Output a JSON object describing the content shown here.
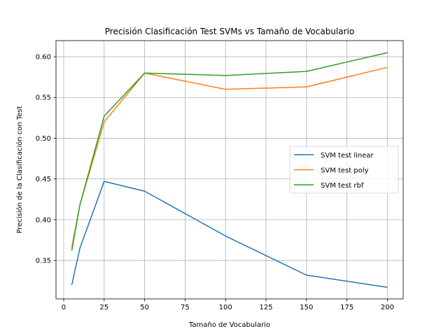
{
  "chart_data": {
    "type": "line",
    "title": "Precisión Clasificación Test SVMs vs Tamaño de Vocabulario",
    "xlabel": "Tamaño de Vocabulario",
    "ylabel": "Precisión de la Clasificación con Test",
    "xlim": [
      -4.75,
      209.75
    ],
    "ylim": [
      0.3028,
      0.6198
    ],
    "xticks": [
      0,
      25,
      50,
      75,
      100,
      125,
      150,
      175,
      200
    ],
    "yticks": [
      0.35,
      0.4,
      0.45,
      0.5,
      0.55,
      0.6
    ],
    "ytick_labels": [
      "0.35",
      "0.40",
      "0.45",
      "0.50",
      "0.55",
      "0.60"
    ],
    "grid": true,
    "legend_position": "center-right",
    "x": [
      5,
      10,
      25,
      50,
      100,
      150,
      200
    ],
    "series": [
      {
        "name": "SVM test linear",
        "color": "#1f77b4",
        "values": [
          0.32,
          0.365,
          0.447,
          0.435,
          0.38,
          0.332,
          0.317
        ]
      },
      {
        "name": "SVM test poly",
        "color": "#ff7f0e",
        "values": [
          0.366,
          0.418,
          0.52,
          0.58,
          0.56,
          0.563,
          0.587
        ]
      },
      {
        "name": "SVM test rbf",
        "color": "#2ca02c",
        "values": [
          0.362,
          0.418,
          0.527,
          0.58,
          0.577,
          0.582,
          0.605
        ]
      }
    ]
  }
}
